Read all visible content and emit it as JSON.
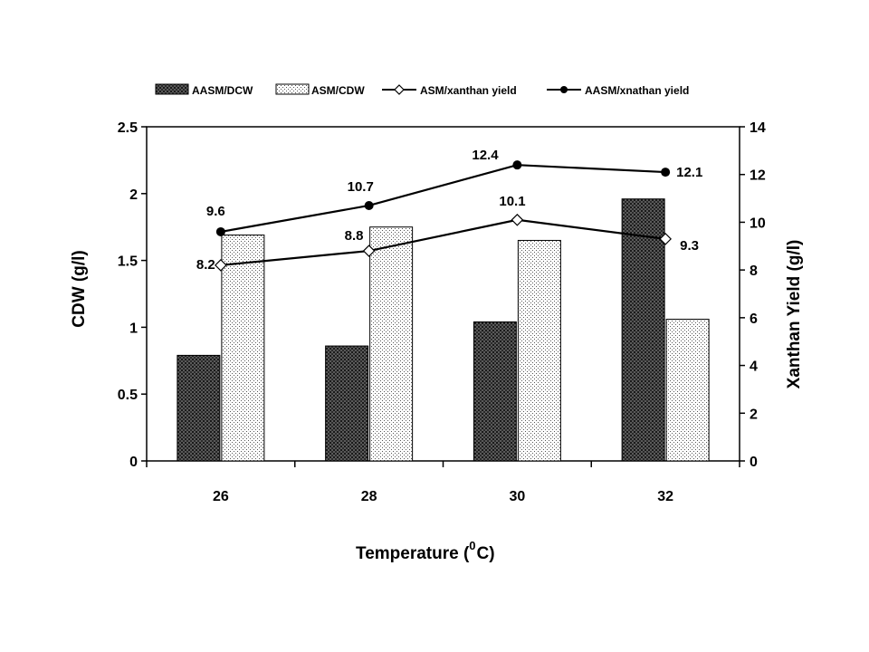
{
  "chart_data": {
    "type": "bar",
    "categories": [
      "26",
      "28",
      "30",
      "32"
    ],
    "series": [
      {
        "name": "AASM/DCW",
        "kind": "bar",
        "axis": "left",
        "pattern": "dark-mesh",
        "values": [
          0.79,
          0.86,
          1.04,
          1.96
        ]
      },
      {
        "name": "ASM/CDW",
        "kind": "bar",
        "axis": "left",
        "pattern": "dotted",
        "values": [
          1.69,
          1.75,
          1.65,
          1.06
        ]
      },
      {
        "name": "ASM/xanthan yield",
        "kind": "line",
        "axis": "right",
        "marker": "diamond",
        "values": [
          8.2,
          8.8,
          10.1,
          9.3
        ],
        "labels": [
          "8.2",
          "8.8",
          "10.1",
          "9.3"
        ]
      },
      {
        "name": "AASM/xnathan yield",
        "kind": "line",
        "axis": "right",
        "marker": "circle",
        "values": [
          9.6,
          10.7,
          12.4,
          12.1
        ],
        "labels": [
          "9.6",
          "10.7",
          "12.4",
          "12.1"
        ]
      }
    ],
    "xlabel_main": "Temperature (",
    "xlabel_sup": "0",
    "xlabel_end": "C)",
    "ylabel": "CDW (g/l)",
    "y2label": "Xanthan Yield (g/l)",
    "ylim": [
      0,
      2.5
    ],
    "y2lim": [
      0,
      14
    ],
    "yticks": [
      "0",
      "0.5",
      "1",
      "1.5",
      "2",
      "2.5"
    ],
    "y2ticks": [
      "0",
      "2",
      "4",
      "6",
      "8",
      "10",
      "12",
      "14"
    ],
    "legend_position": "top",
    "grid": false
  }
}
